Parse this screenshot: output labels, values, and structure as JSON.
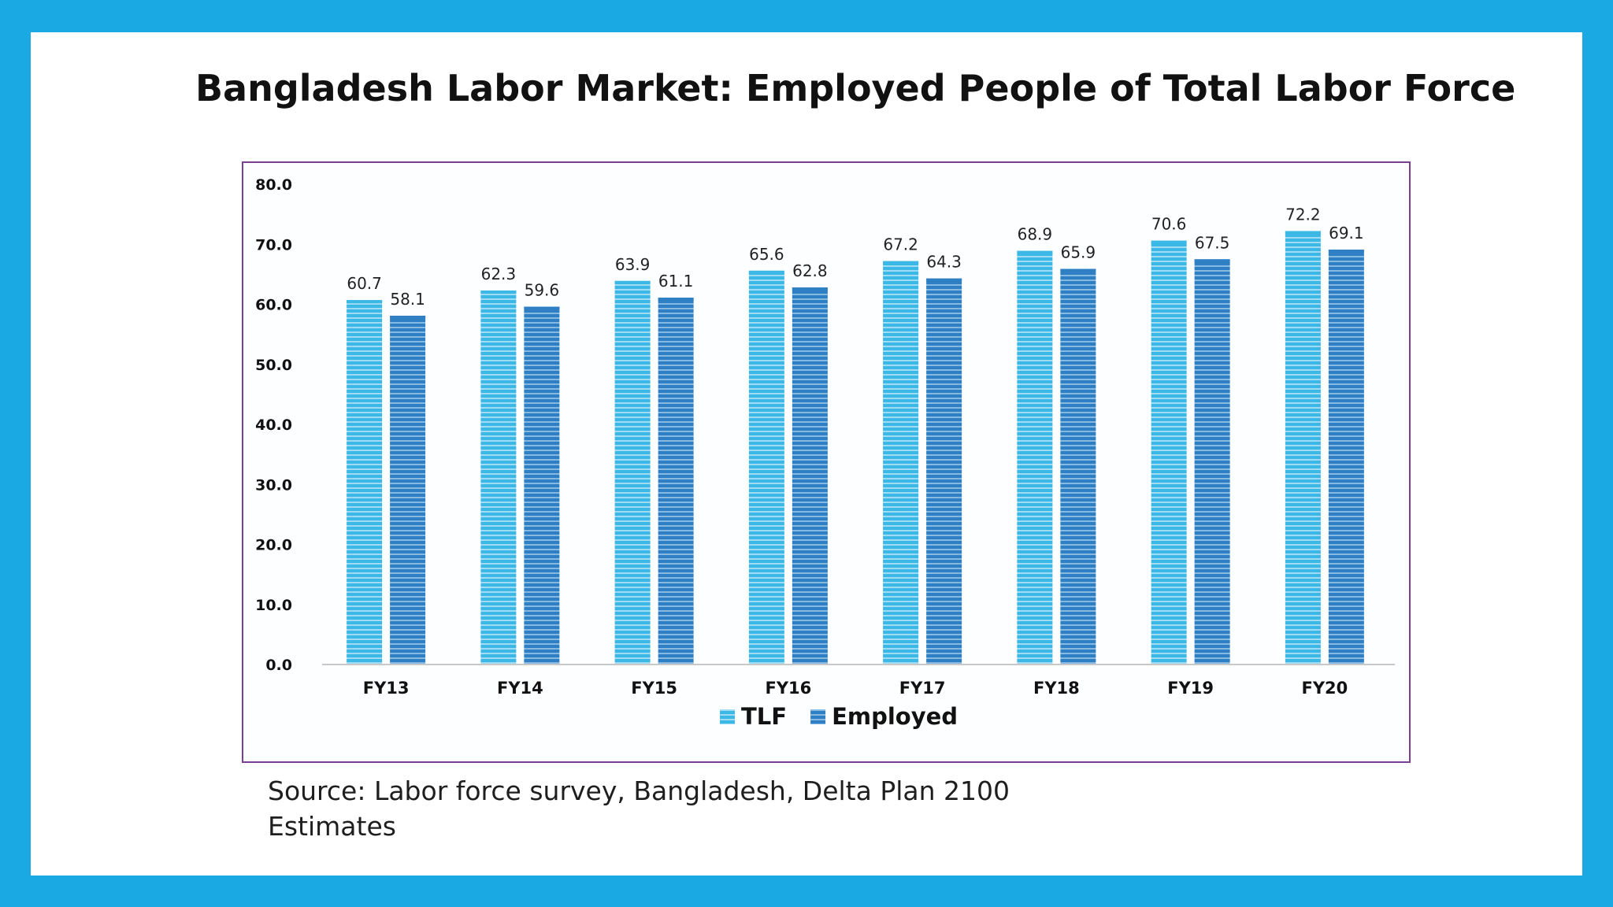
{
  "title": "Bangladesh Labor Market: Employed People of Total Labor Force",
  "source_text": "Source: Labor force survey, Bangladesh, Delta Plan 2100 Estimates",
  "colors": {
    "border": "#1aa9e3",
    "chart_frame": "#7a3e93",
    "tlf": "#3bb8e6",
    "employed": "#2f7fc4"
  },
  "chart_data": {
    "type": "bar",
    "categories": [
      "FY13",
      "FY14",
      "FY15",
      "FY16",
      "FY17",
      "FY18",
      "FY19",
      "FY20"
    ],
    "series": [
      {
        "name": "TLF",
        "values": [
          60.7,
          62.3,
          63.9,
          65.6,
          67.2,
          68.9,
          70.6,
          72.2
        ]
      },
      {
        "name": "Employed",
        "values": [
          58.1,
          59.6,
          61.1,
          62.8,
          64.3,
          65.9,
          67.5,
          69.1
        ]
      }
    ],
    "y_ticks": [
      "0.0",
      "10.0",
      "20.0",
      "30.0",
      "40.0",
      "50.0",
      "60.0",
      "70.0",
      "80.0"
    ],
    "ylim": [
      0,
      80
    ],
    "legend_position": "bottom",
    "grid": false,
    "data_labels": true
  }
}
